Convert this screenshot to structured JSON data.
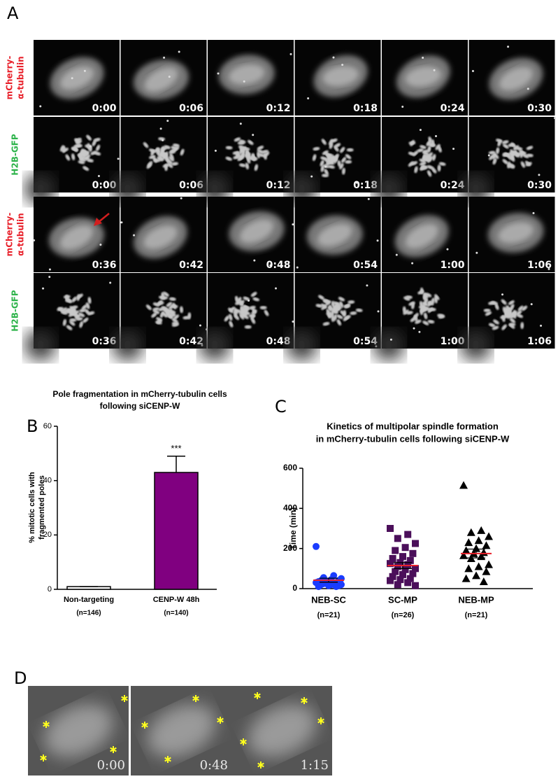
{
  "panel_labels": [
    "A",
    "B",
    "C",
    "D"
  ],
  "panel_a": {
    "rows": [
      {
        "label": [
          "mCherry-",
          "α-tubulin"
        ],
        "label_color": "#e8202a",
        "kind": "tubulin",
        "times": [
          "0:00",
          "0:06",
          "0:12",
          "0:18",
          "0:24",
          "0:30"
        ]
      },
      {
        "label": [
          "H2B-GFP"
        ],
        "label_color": "#2db34a",
        "kind": "chromatin",
        "times": [
          "0:00",
          "0:06",
          "0:12",
          "0:18",
          "0:24",
          "0:30"
        ]
      },
      {
        "label": [
          "mCherry-",
          "α-tubulin"
        ],
        "label_color": "#e8202a",
        "kind": "tubulin",
        "times": [
          "0:36",
          "0:42",
          "0:48",
          "0:54",
          "1:00",
          "1:06"
        ]
      },
      {
        "label": [
          "H2B-GFP"
        ],
        "label_color": "#2db34a",
        "kind": "chromatin",
        "times": [
          "0:36",
          "0:42",
          "0:48",
          "0:54",
          "1:00",
          "1:06"
        ]
      }
    ]
  },
  "chart_data": [
    {
      "type": "bar",
      "title": [
        "Pole fragmentation in mCherry-tubulin cells",
        "following siCENP-W"
      ],
      "ylabel": [
        "% mitotic cells with",
        "fragmented poles"
      ],
      "categories": [
        "Non-targeting",
        "CENP-W 48h"
      ],
      "category_notes": [
        "(n=146)",
        "(n=140)"
      ],
      "values": [
        1,
        43
      ],
      "errors": [
        0,
        6
      ],
      "colors": [
        "#ffffff",
        "#800080"
      ],
      "annotations": [
        null,
        "***"
      ],
      "ylim": [
        0,
        60
      ],
      "yticks": [
        0,
        20,
        40,
        60
      ]
    },
    {
      "type": "scatter",
      "title": [
        "Kinetics of multipolar spindle formation",
        "in mCherry-tubulin cells following siCENP-W"
      ],
      "ylabel": "Time (min)",
      "categories": [
        "NEB-SC",
        "SC-MP",
        "NEB-MP"
      ],
      "category_notes": [
        "(n=21)",
        "(n=26)",
        "(n=21)"
      ],
      "mean_color": "#e8202a",
      "series": [
        {
          "color": "#1a3cff",
          "marker": "circle",
          "mean": 42,
          "sem": 10,
          "values": [
            210,
            65,
            55,
            50,
            45,
            40,
            40,
            35,
            35,
            30,
            30,
            30,
            25,
            25,
            20,
            20,
            20,
            15,
            15,
            10,
            10
          ]
        },
        {
          "color": "#4b0f5a",
          "marker": "square",
          "mean": 115,
          "sem": 15,
          "values": [
            300,
            270,
            250,
            225,
            205,
            190,
            175,
            160,
            150,
            140,
            130,
            125,
            120,
            110,
            100,
            95,
            85,
            75,
            70,
            60,
            50,
            45,
            40,
            30,
            20,
            15
          ]
        },
        {
          "color": "#000000",
          "marker": "triangle",
          "mean": 175,
          "sem": 22,
          "values": [
            515,
            290,
            280,
            260,
            240,
            230,
            215,
            200,
            190,
            180,
            175,
            165,
            160,
            150,
            120,
            110,
            100,
            85,
            65,
            50,
            35
          ]
        }
      ],
      "ylim": [
        0,
        600
      ],
      "yticks": [
        0,
        200,
        400,
        600
      ]
    }
  ],
  "panel_d": {
    "times": [
      "0:00",
      "0:48",
      "1:15"
    ]
  }
}
